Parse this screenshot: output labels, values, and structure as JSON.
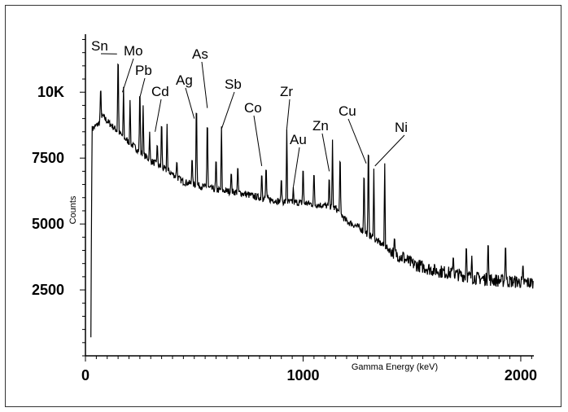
{
  "chart_data": {
    "type": "line",
    "title": "",
    "xlabel": "Gamma Energy (keV)",
    "ylabel": "Counts",
    "xlim": [
      0,
      2060
    ],
    "ylim": [
      0,
      12200
    ],
    "x_ticks": [
      0,
      1000,
      2000
    ],
    "x_tick_labels": [
      "0",
      "1000",
      "2000"
    ],
    "y_ticks": [
      2500,
      5000,
      7500,
      10000
    ],
    "y_tick_labels": [
      "2500",
      "5000",
      "7500",
      "10K"
    ],
    "grid": false,
    "legend": "none",
    "series_color": "#000000",
    "baseline": [
      [
        25,
        700
      ],
      [
        30,
        8600
      ],
      [
        60,
        8800
      ],
      [
        80,
        9100
      ],
      [
        100,
        8900
      ],
      [
        200,
        8100
      ],
      [
        300,
        7400
      ],
      [
        400,
        6900
      ],
      [
        450,
        6600
      ],
      [
        500,
        6500
      ],
      [
        600,
        6300
      ],
      [
        700,
        6200
      ],
      [
        800,
        6000
      ],
      [
        900,
        5850
      ],
      [
        1000,
        5800
      ],
      [
        1100,
        5700
      ],
      [
        1150,
        5600
      ],
      [
        1200,
        5100
      ],
      [
        1250,
        4900
      ],
      [
        1300,
        4600
      ],
      [
        1400,
        4000
      ],
      [
        1500,
        3500
      ],
      [
        1600,
        3250
      ],
      [
        1700,
        3100
      ],
      [
        1800,
        2950
      ],
      [
        1900,
        2850
      ],
      [
        2000,
        2800
      ],
      [
        2060,
        2750
      ]
    ],
    "peaks": [
      {
        "x": 70,
        "y": 10400
      },
      {
        "x": 150,
        "y": 11900
      },
      {
        "x": 175,
        "y": 10200
      },
      {
        "x": 205,
        "y": 9700
      },
      {
        "x": 250,
        "y": 10500
      },
      {
        "x": 265,
        "y": 9500
      },
      {
        "x": 295,
        "y": 8500
      },
      {
        "x": 330,
        "y": 8200
      },
      {
        "x": 350,
        "y": 9200
      },
      {
        "x": 375,
        "y": 8800
      },
      {
        "x": 420,
        "y": 7500
      },
      {
        "x": 490,
        "y": 7700
      },
      {
        "x": 510,
        "y": 10100
      },
      {
        "x": 560,
        "y": 9400
      },
      {
        "x": 600,
        "y": 7700
      },
      {
        "x": 625,
        "y": 8700
      },
      {
        "x": 670,
        "y": 7100
      },
      {
        "x": 700,
        "y": 7400
      },
      {
        "x": 810,
        "y": 7100
      },
      {
        "x": 830,
        "y": 7400
      },
      {
        "x": 900,
        "y": 6900
      },
      {
        "x": 925,
        "y": 8600
      },
      {
        "x": 955,
        "y": 6400
      },
      {
        "x": 1000,
        "y": 7400
      },
      {
        "x": 1050,
        "y": 7200
      },
      {
        "x": 1120,
        "y": 7000
      },
      {
        "x": 1135,
        "y": 8200
      },
      {
        "x": 1170,
        "y": 8000
      },
      {
        "x": 1280,
        "y": 7400
      },
      {
        "x": 1300,
        "y": 8600
      },
      {
        "x": 1325,
        "y": 7100
      },
      {
        "x": 1375,
        "y": 7300
      },
      {
        "x": 1420,
        "y": 4600
      },
      {
        "x": 1460,
        "y": 4000
      },
      {
        "x": 1690,
        "y": 3900
      },
      {
        "x": 1750,
        "y": 4400
      },
      {
        "x": 1775,
        "y": 3800
      },
      {
        "x": 1850,
        "y": 4600
      },
      {
        "x": 1930,
        "y": 4500
      },
      {
        "x": 2010,
        "y": 3600
      }
    ],
    "annotations": [
      {
        "text": "Sn",
        "x": 145,
        "y": 11450
      },
      {
        "text": "Mo",
        "x": 170,
        "y": 10000
      },
      {
        "text": "Pb",
        "x": 250,
        "y": 9800
      },
      {
        "text": "Cd",
        "x": 320,
        "y": 8500
      },
      {
        "text": "Ag",
        "x": 500,
        "y": 9000
      },
      {
        "text": "As",
        "x": 560,
        "y": 9400
      },
      {
        "text": "Sb",
        "x": 625,
        "y": 8600
      },
      {
        "text": "Co",
        "x": 810,
        "y": 7200
      },
      {
        "text": "Zr",
        "x": 925,
        "y": 8600
      },
      {
        "text": "Au",
        "x": 955,
        "y": 6400
      },
      {
        "text": "Zn",
        "x": 1120,
        "y": 7000
      },
      {
        "text": "Cu",
        "x": 1290,
        "y": 7300
      },
      {
        "text": "Ni",
        "x": 1330,
        "y": 7200
      }
    ]
  }
}
